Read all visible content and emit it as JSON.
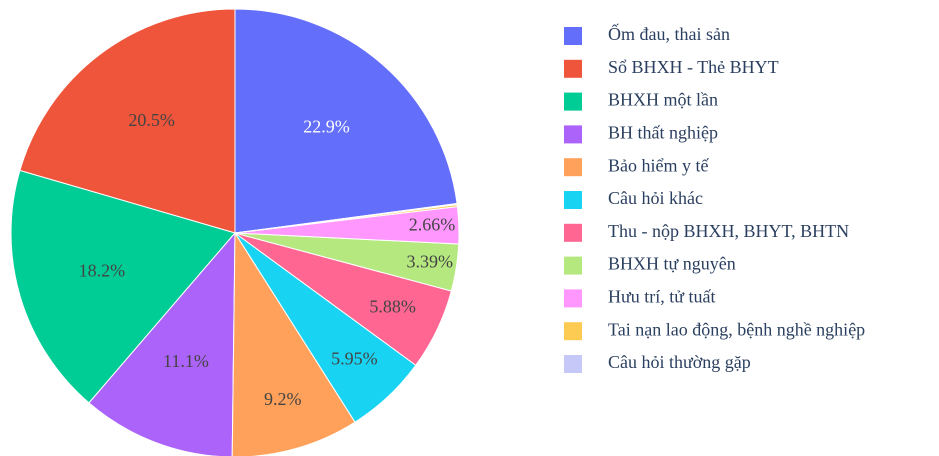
{
  "chart_data": {
    "type": "pie",
    "direction": "counterclockwise",
    "categories": [
      "Ốm đau, thai sản",
      "Sổ BHXH - Thẻ BHYT",
      "BHXH một lần",
      "BH thất nghiệp",
      "Bảo hiểm y tế",
      "Câu hỏi khác",
      "Thu - nộp BHXH, BHYT, BHTN",
      "BHXH tự nguyên",
      "Hưu trí, tử tuất",
      "Tai nạn lao động, bệnh nghề nghiệp",
      "Câu hỏi thường gặp"
    ],
    "values": [
      22.9,
      20.5,
      18.2,
      11.1,
      9.2,
      5.95,
      5.88,
      3.39,
      2.66,
      0.15,
      0.07
    ],
    "value_labels": [
      "22.9%",
      "20.5%",
      "18.2%",
      "11.1%",
      "9.2%",
      "5.95%",
      "5.88%",
      "3.39%",
      "2.66%",
      null,
      null
    ],
    "colors": [
      "#636efa",
      "#ef553b",
      "#00cc96",
      "#ab63fa",
      "#ffa15a",
      "#19d3f3",
      "#ff6692",
      "#b6e880",
      "#ff97ff",
      "#fecb52",
      "#c6c8f7"
    ],
    "legend": "right"
  }
}
